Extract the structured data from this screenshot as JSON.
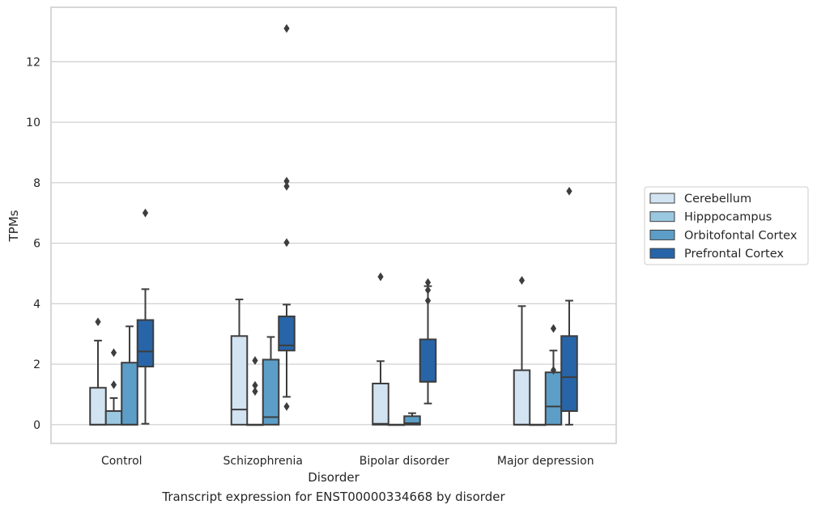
{
  "chart_data": {
    "type": "box",
    "xlabel": "Disorder",
    "ylabel": "TPMs",
    "caption": "Transcript expression for ENST00000334668 by disorder",
    "ylim": [
      -0.62,
      13.8
    ],
    "yticks": [
      0,
      2,
      4,
      6,
      8,
      10,
      12
    ],
    "grid": "horizontal",
    "legend_position": "right",
    "categories": [
      "Control",
      "Schizophrenia",
      "Bipolar disorder",
      "Major depression"
    ],
    "series": [
      {
        "name": "Cerebellum",
        "color": "#d2e3f2",
        "boxes": [
          {
            "whisker_low": 0,
            "q1": 0,
            "median": 0,
            "q3": 1.22,
            "whisker_high": 2.78,
            "outliers": [
              3.4
            ]
          },
          {
            "whisker_low": 0,
            "q1": 0,
            "median": 0.5,
            "q3": 2.93,
            "whisker_high": 4.14,
            "outliers": []
          },
          {
            "whisker_low": 0,
            "q1": 0,
            "median": 0.03,
            "q3": 1.36,
            "whisker_high": 2.1,
            "outliers": [
              4.89
            ]
          },
          {
            "whisker_low": 0,
            "q1": 0,
            "median": 0,
            "q3": 1.8,
            "whisker_high": 3.92,
            "outliers": [
              4.77
            ]
          }
        ]
      },
      {
        "name": "Hipppocampus",
        "color": "#9ac8e0",
        "boxes": [
          {
            "whisker_low": 0,
            "q1": 0,
            "median": 0.45,
            "q3": 0.45,
            "whisker_high": 0.88,
            "outliers": [
              1.32,
              2.38
            ]
          },
          {
            "whisker_low": 0,
            "q1": 0,
            "median": 0,
            "q3": 0,
            "whisker_high": 0,
            "outliers": [
              1.1,
              1.3,
              2.12
            ]
          },
          {
            "whisker_low": 0,
            "q1": 0,
            "median": 0,
            "q3": 0,
            "whisker_high": 0,
            "outliers": []
          },
          {
            "whisker_low": 0,
            "q1": 0,
            "median": 0,
            "q3": 0,
            "whisker_high": 0,
            "outliers": []
          }
        ]
      },
      {
        "name": "Orbitofontal Cortex",
        "color": "#5c9ec8",
        "boxes": [
          {
            "whisker_low": 0,
            "q1": 0,
            "median": 0,
            "q3": 2.05,
            "whisker_high": 3.25,
            "outliers": []
          },
          {
            "whisker_low": 0,
            "q1": 0,
            "median": 0.25,
            "q3": 2.15,
            "whisker_high": 2.9,
            "outliers": []
          },
          {
            "whisker_low": 0,
            "q1": 0,
            "median": 0.05,
            "q3": 0.28,
            "whisker_high": 0.38,
            "outliers": []
          },
          {
            "whisker_low": 0,
            "q1": 0,
            "median": 0.6,
            "q3": 1.73,
            "whisker_high": 2.45,
            "outliers": [
              1.8,
              3.18
            ]
          }
        ]
      },
      {
        "name": "Prefrontal Cortex",
        "color": "#2765a8",
        "boxes": [
          {
            "whisker_low": 0.03,
            "q1": 1.92,
            "median": 2.42,
            "q3": 3.46,
            "whisker_high": 4.48,
            "outliers": [
              7.0
            ]
          },
          {
            "whisker_low": 0.92,
            "q1": 2.45,
            "median": 2.62,
            "q3": 3.58,
            "whisker_high": 3.97,
            "outliers": [
              0.6,
              6.02,
              7.88,
              8.05,
              13.1
            ]
          },
          {
            "whisker_low": 0.7,
            "q1": 1.42,
            "median": 1.42,
            "q3": 2.82,
            "whisker_high": 4.58,
            "outliers": [
              4.1,
              4.45,
              4.7
            ]
          },
          {
            "whisker_low": 0,
            "q1": 0.45,
            "median": 1.57,
            "q3": 2.93,
            "whisker_high": 4.1,
            "outliers": [
              7.72
            ]
          }
        ]
      }
    ]
  }
}
